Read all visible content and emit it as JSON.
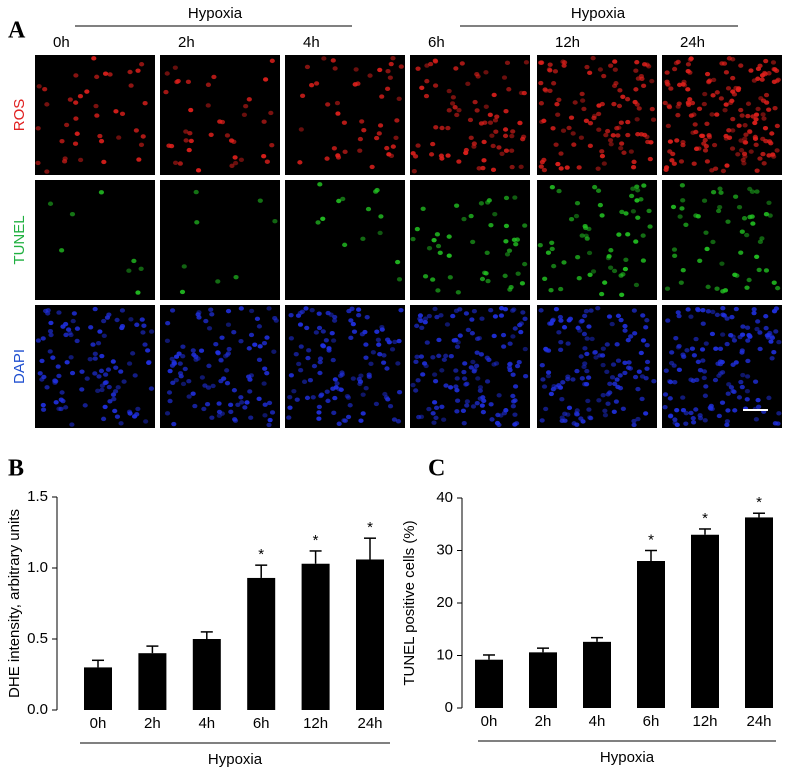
{
  "panel_a": {
    "label": "A",
    "groups": [
      "Hypoxia",
      "Hypoxia"
    ],
    "columns": [
      "0h",
      "2h",
      "4h",
      "6h",
      "12h",
      "24h"
    ],
    "rows": [
      "ROS",
      "TUNEL",
      "DAPI"
    ]
  },
  "chart_data": [
    {
      "type": "bar",
      "panel_label": "B",
      "y_label": "DHE intensity, arbitrary units",
      "x_label": "Hypoxia",
      "categories": [
        "0h",
        "2h",
        "4h",
        "6h",
        "12h",
        "24h"
      ],
      "values": [
        0.3,
        0.4,
        0.5,
        0.93,
        1.03,
        1.06
      ],
      "errors": [
        0.05,
        0.05,
        0.05,
        0.09,
        0.09,
        0.15
      ],
      "significance": [
        null,
        null,
        null,
        "*",
        "*",
        "*"
      ],
      "color": "#000000",
      "ylim": [
        0,
        1.5
      ],
      "yticks": [
        {
          "value": 0,
          "label": "0.0"
        },
        0.5,
        {
          "value": 1,
          "label": "1.0"
        },
        1.5
      ]
    },
    {
      "type": "bar",
      "panel_label": "C",
      "y_label": "TUNEL positive cells (%)",
      "x_label": "Hypoxia",
      "categories": [
        "0h",
        "2h",
        "4h",
        "6h",
        "12h",
        "24h"
      ],
      "values": [
        9.2,
        10.6,
        12.6,
        28.0,
        33.0,
        36.3
      ],
      "errors": [
        0.9,
        0.8,
        0.8,
        2.0,
        1.1,
        0.8
      ],
      "significance": [
        null,
        null,
        null,
        "*",
        "*",
        "*"
      ],
      "color": "#000000",
      "ylim": [
        0,
        40
      ],
      "yticks": [
        0,
        10,
        20,
        30,
        40
      ]
    }
  ]
}
